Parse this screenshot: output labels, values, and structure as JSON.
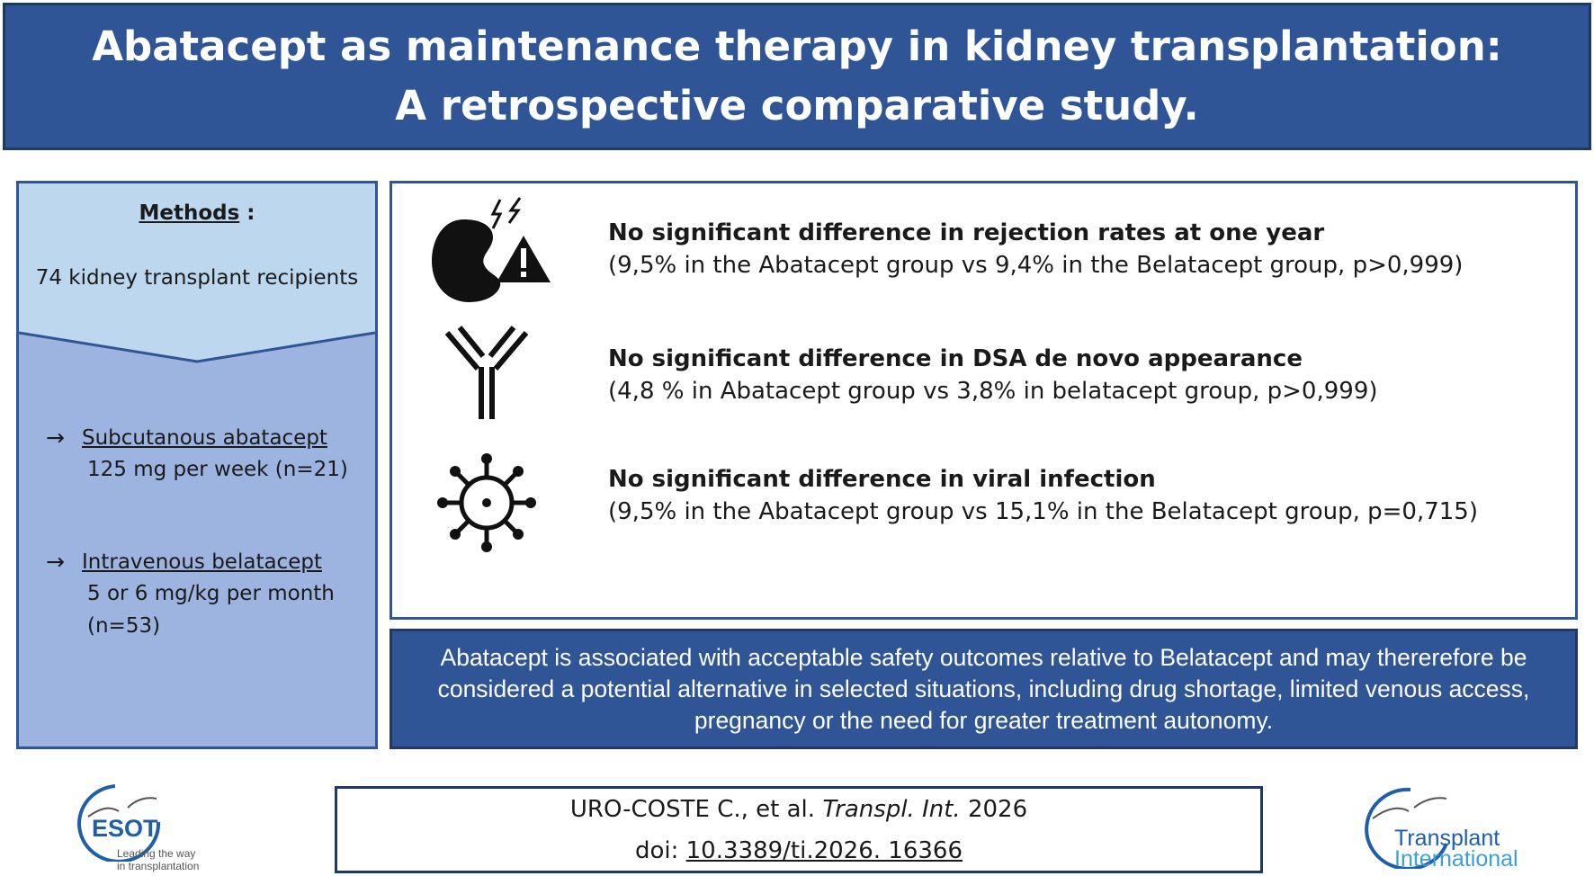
{
  "banner": {
    "title_line1": "Abatacept as maintenance therapy in kidney transplantation:",
    "title_line2": "A retrospective comparative study."
  },
  "methods": {
    "heading": "Methods",
    "heading_suffix": " :",
    "recipients": "74 kidney transplant recipients",
    "arms": [
      {
        "arrow": "→",
        "name": "Subcutanous abatacept",
        "detail_lines": [
          "125 mg per week (n=21)"
        ]
      },
      {
        "arrow": "→",
        "name": "Intravenous belatacept",
        "detail_lines": [
          "5 or 6 mg/kg per month",
          "(n=53)"
        ]
      }
    ]
  },
  "results": [
    {
      "icon": "kidney-rejection-icon",
      "title": "No significant difference in rejection rates at one year",
      "detail": "(9,5% in the Abatacept group vs 9,4% in the Belatacept group, p>0,999)"
    },
    {
      "icon": "antibody-icon",
      "title": "No significant difference in DSA de novo appearance",
      "detail": "(4,8 % in Abatacept group vs 3,8% in belatacept group, p>0,999)"
    },
    {
      "icon": "virus-icon",
      "title": "No significant difference in viral infection",
      "detail": "(9,5% in the Abatacept group vs 15,1% in the Belatacept group, p=0,715)"
    }
  ],
  "conclusion": "Abatacept is associated with acceptable safety outcomes relative to Belatacept and may thererefore be considered a potential alternative in selected situations, including  drug shortage, limited venous access, pregnancy or the need for greater treatment autonomy.",
  "citation": {
    "authors": "URO-COSTE C., et al. ",
    "journal": "Transpl. Int.",
    "year": " 2026",
    "doi_prefix": "doi: ",
    "doi": "10.3389/ti.2026. 16366"
  },
  "logos": {
    "esot": {
      "name": "ESOT",
      "tagline_line1": "Leading the way",
      "tagline_line2": "in transplantation"
    },
    "journal": {
      "line1": "Transplant",
      "line2": "International"
    }
  },
  "colors": {
    "banner": "#2f5597",
    "methods_top": "#bdd7ee",
    "methods_bottom": "#9db3e0",
    "panel_border": "#2f5597",
    "logo_blue": "#1f5fa8"
  }
}
